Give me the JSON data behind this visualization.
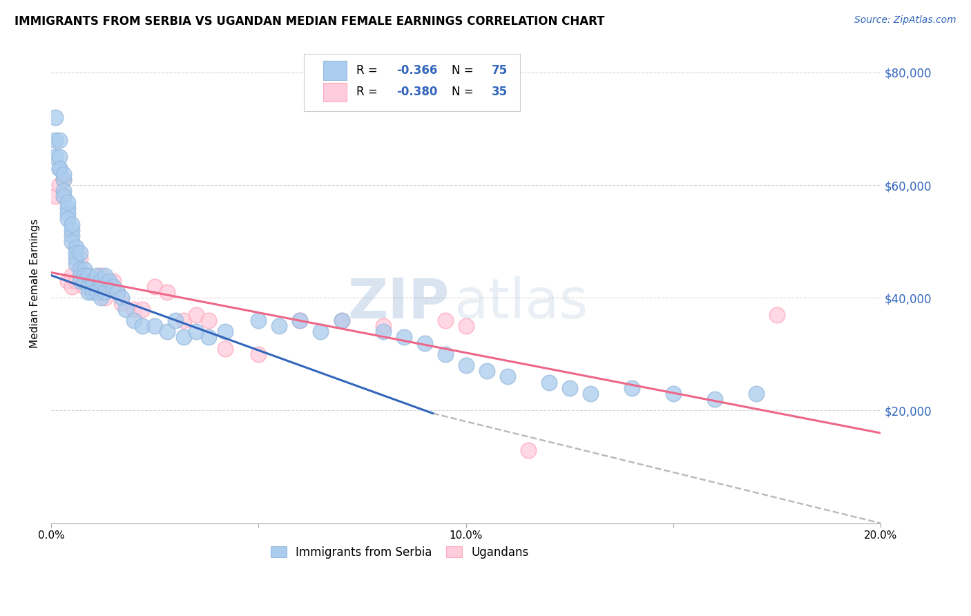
{
  "title": "IMMIGRANTS FROM SERBIA VS UGANDAN MEDIAN FEMALE EARNINGS CORRELATION CHART",
  "source": "Source: ZipAtlas.com",
  "ylabel": "Median Female Earnings",
  "legend_label_1": "Immigrants from Serbia",
  "legend_label_2": "Ugandans",
  "R1": "-0.366",
  "N1": "75",
  "R2": "-0.380",
  "N2": "35",
  "color_blue": "#99BBDD",
  "color_blue_fill": "#AACCEE",
  "color_pink": "#FFAABB",
  "color_pink_fill": "#FFCCDD",
  "color_blue_line": "#3366BB",
  "color_pink_line": "#EE6688",
  "color_dashed": "#BBBBBB",
  "color_axis_right": "#3366BB",
  "xlim": [
    0.0,
    0.2
  ],
  "ylim": [
    0,
    85000
  ],
  "yticks": [
    0,
    20000,
    40000,
    60000,
    80000
  ],
  "xticks": [
    0.0,
    0.05,
    0.1,
    0.15,
    0.2
  ],
  "ytick_labels": [
    "",
    "$20,000",
    "$40,000",
    "$60,000",
    "$80,000"
  ],
  "watermark_zip": "ZIP",
  "watermark_atlas": "atlas",
  "blue_line_x": [
    0.0,
    0.092
  ],
  "blue_line_y": [
    44000,
    19500
  ],
  "pink_line_x": [
    0.0,
    0.2
  ],
  "pink_line_y": [
    44500,
    16000
  ],
  "dash_line_x": [
    0.092,
    0.2
  ],
  "dash_line_y": [
    19500,
    0
  ],
  "blue_x": [
    0.001,
    0.001,
    0.001,
    0.002,
    0.002,
    0.002,
    0.002,
    0.003,
    0.003,
    0.003,
    0.003,
    0.004,
    0.004,
    0.004,
    0.004,
    0.005,
    0.005,
    0.005,
    0.005,
    0.006,
    0.006,
    0.006,
    0.006,
    0.007,
    0.007,
    0.007,
    0.007,
    0.008,
    0.008,
    0.008,
    0.009,
    0.009,
    0.009,
    0.01,
    0.01,
    0.01,
    0.011,
    0.011,
    0.012,
    0.012,
    0.013,
    0.013,
    0.014,
    0.015,
    0.016,
    0.017,
    0.018,
    0.02,
    0.022,
    0.025,
    0.028,
    0.03,
    0.032,
    0.035,
    0.038,
    0.042,
    0.05,
    0.055,
    0.06,
    0.065,
    0.07,
    0.08,
    0.085,
    0.09,
    0.095,
    0.1,
    0.105,
    0.11,
    0.12,
    0.125,
    0.13,
    0.14,
    0.15,
    0.16,
    0.17
  ],
  "blue_y": [
    72000,
    68000,
    65000,
    63000,
    68000,
    65000,
    63000,
    61000,
    59000,
    62000,
    58000,
    56000,
    55000,
    54000,
    57000,
    52000,
    51000,
    50000,
    53000,
    49000,
    48000,
    47000,
    46000,
    48000,
    45000,
    44000,
    43000,
    45000,
    44000,
    43000,
    44000,
    42000,
    41000,
    43000,
    42000,
    41000,
    44000,
    41000,
    43000,
    40000,
    44000,
    41000,
    43000,
    42000,
    41000,
    40000,
    38000,
    36000,
    35000,
    35000,
    34000,
    36000,
    33000,
    34000,
    33000,
    34000,
    36000,
    35000,
    36000,
    34000,
    36000,
    34000,
    33000,
    32000,
    30000,
    28000,
    27000,
    26000,
    25000,
    24000,
    23000,
    24000,
    23000,
    22000,
    23000
  ],
  "pink_x": [
    0.001,
    0.002,
    0.003,
    0.003,
    0.004,
    0.005,
    0.005,
    0.006,
    0.007,
    0.008,
    0.008,
    0.009,
    0.01,
    0.011,
    0.012,
    0.013,
    0.015,
    0.016,
    0.017,
    0.02,
    0.022,
    0.025,
    0.028,
    0.032,
    0.035,
    0.038,
    0.042,
    0.05,
    0.06,
    0.07,
    0.08,
    0.095,
    0.1,
    0.115,
    0.175
  ],
  "pink_y": [
    58000,
    60000,
    58000,
    61000,
    43000,
    42000,
    44000,
    43000,
    47000,
    42000,
    44000,
    43000,
    42000,
    41000,
    44000,
    40000,
    43000,
    41000,
    39000,
    38000,
    38000,
    42000,
    41000,
    36000,
    37000,
    36000,
    31000,
    30000,
    36000,
    36000,
    35000,
    36000,
    35000,
    13000,
    37000
  ]
}
